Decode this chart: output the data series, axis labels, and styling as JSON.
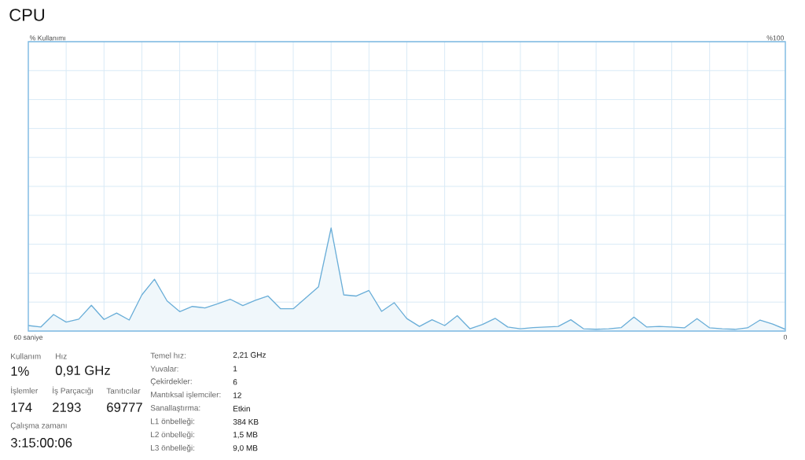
{
  "chart_data": {
    "type": "area",
    "title": "CPU",
    "ylabel": "% Kullanımı",
    "x": [
      60,
      59,
      58,
      57,
      56,
      55,
      54,
      53,
      52,
      51,
      50,
      49,
      48,
      47,
      46,
      45,
      44,
      43,
      42,
      41,
      40,
      39,
      38,
      37,
      36,
      35,
      34,
      33,
      32,
      31,
      30,
      29,
      28,
      27,
      26,
      25,
      24,
      23,
      22,
      21,
      20,
      19,
      18,
      17,
      16,
      15,
      14,
      13,
      12,
      11,
      10,
      9,
      8,
      7,
      6,
      5,
      4,
      3,
      2,
      1,
      0
    ],
    "series": [
      {
        "color": "#6aaed8",
        "values": [
          1.9,
          1.4,
          5.7,
          3.1,
          4.1,
          8.9,
          4.0,
          6.2,
          3.8,
          12.5,
          17.9,
          10.4,
          6.7,
          8.5,
          8.0,
          9.4,
          11.0,
          8.8,
          10.6,
          12.1,
          7.7,
          7.7,
          11.5,
          15.3,
          35.6,
          12.5,
          12.1,
          14.0,
          6.8,
          9.8,
          4.3,
          1.6,
          3.9,
          1.9,
          5.3,
          0.8,
          2.3,
          4.4,
          1.4,
          0.8,
          1.2,
          1.4,
          1.6,
          3.9,
          0.8,
          0.6,
          0.8,
          1.2,
          4.8,
          1.4,
          1.6,
          1.4,
          1.1,
          4.3,
          1.1,
          0.8,
          0.6,
          1.1,
          3.8,
          2.4,
          0.6
        ]
      }
    ],
    "xlim": [
      60,
      0
    ],
    "xticks": [
      {
        "value": 60,
        "label": "60 saniye"
      },
      {
        "value": 57,
        "label": null
      },
      {
        "value": 54,
        "label": null
      },
      {
        "value": 51,
        "label": null
      },
      {
        "value": 48,
        "label": null
      },
      {
        "value": 45,
        "label": null
      },
      {
        "value": 42,
        "label": null
      },
      {
        "value": 39,
        "label": null
      },
      {
        "value": 36,
        "label": null
      },
      {
        "value": 33,
        "label": null
      },
      {
        "value": 30,
        "label": null
      },
      {
        "value": 27,
        "label": null
      },
      {
        "value": 24,
        "label": null
      },
      {
        "value": 21,
        "label": null
      },
      {
        "value": 18,
        "label": null
      },
      {
        "value": 15,
        "label": null
      },
      {
        "value": 12,
        "label": null
      },
      {
        "value": 9,
        "label": null
      },
      {
        "value": 6,
        "label": null
      },
      {
        "value": 3,
        "label": null
      },
      {
        "value": 0,
        "label": "0"
      }
    ],
    "ylim": [
      0,
      100
    ],
    "yticks": [
      {
        "value": 0,
        "label": null
      },
      {
        "value": 10,
        "label": null
      },
      {
        "value": 20,
        "label": null
      },
      {
        "value": 30,
        "label": null
      },
      {
        "value": 40,
        "label": null
      },
      {
        "value": 50,
        "label": null
      },
      {
        "value": 60,
        "label": null
      },
      {
        "value": 70,
        "label": null
      },
      {
        "value": 80,
        "label": null
      },
      {
        "value": 90,
        "label": null
      },
      {
        "value": 100,
        "label": "%100"
      }
    ],
    "grid": true,
    "annotations": [
      "Kullanım",
      "1%",
      "Hız",
      "0,91 GHz",
      "İşlemler",
      "174",
      "İş Parçacığı",
      "2193",
      "Tanıtıcılar",
      "69777",
      "Çalışma zamanı",
      "3:15:00:06",
      "Temel hız:",
      "2,21 GHz",
      "Yuvalar:",
      "1",
      "Çekirdekler:",
      "6",
      "Mantıksal işlemciler:",
      "12",
      "Sanallaştırma:",
      "Etkin",
      "L1 önbelleği:",
      "384 KB",
      "L2 önbelleği:",
      "1,5 MB",
      "L3 önbelleği:",
      "9,0 MB"
    ]
  }
}
